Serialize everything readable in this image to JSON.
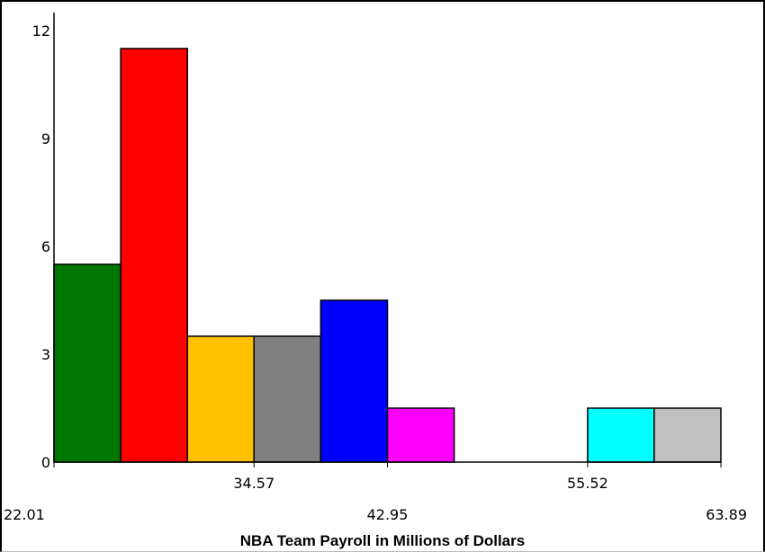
{
  "chart_data": {
    "type": "bar",
    "title": "",
    "xlabel": "NBA Team Payroll in Millions of Dollars",
    "ylabel": "",
    "ylim": [
      0,
      12.5
    ],
    "y_ticks": [
      {
        "value": 0,
        "label": "0"
      },
      {
        "value": 3,
        "label": "3"
      },
      {
        "value": 6,
        "label": "6"
      },
      {
        "value": 9,
        "label": "9"
      },
      {
        "value": 12,
        "label": "12"
      }
    ],
    "x_range": [
      22.01,
      63.89
    ],
    "x_ticks_low": [
      {
        "value": 22.01,
        "label": "22.01"
      },
      {
        "value": 42.95,
        "label": "42.95"
      },
      {
        "value": 63.89,
        "label": "63.89"
      }
    ],
    "x_ticks_high": [
      {
        "value": 34.57,
        "label": "34.57"
      },
      {
        "value": 55.52,
        "label": "55.52"
      }
    ],
    "bins": [
      {
        "start": 22.01,
        "end": 26.2,
        "value": 5.5,
        "color": "#007700"
      },
      {
        "start": 26.2,
        "end": 30.39,
        "value": 11.5,
        "color": "#ff0000"
      },
      {
        "start": 30.39,
        "end": 34.57,
        "value": 3.5,
        "color": "#ffc000"
      },
      {
        "start": 34.57,
        "end": 38.76,
        "value": 3.5,
        "color": "#808080"
      },
      {
        "start": 38.76,
        "end": 42.95,
        "value": 4.5,
        "color": "#0000ff"
      },
      {
        "start": 42.95,
        "end": 47.14,
        "value": 1.5,
        "color": "#ff00ff"
      },
      {
        "start": 47.14,
        "end": 51.33,
        "value": 0,
        "color": "#ffffff"
      },
      {
        "start": 51.33,
        "end": 55.52,
        "value": 0,
        "color": "#ffffff"
      },
      {
        "start": 55.52,
        "end": 59.7,
        "value": 1.5,
        "color": "#00ffff"
      },
      {
        "start": 59.7,
        "end": 63.89,
        "value": 1.5,
        "color": "#c0c0c0"
      }
    ],
    "grid": false,
    "legend": "none"
  }
}
